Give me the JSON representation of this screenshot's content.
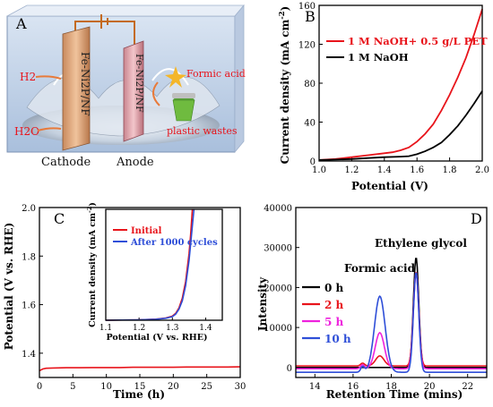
{
  "panel_letters": {
    "a": "A",
    "b": "B",
    "c": "C",
    "d": "D"
  },
  "panel_a": {
    "cathode_material": "Fe-Ni2P/NF",
    "anode_material": "Fe-Ni2P/NF",
    "h2": "H2",
    "h2o": "H2O",
    "formic_acid": "Formic acid",
    "plastic_wastes": "plastic wastes",
    "cathode": "Cathode",
    "anode": "Anode"
  },
  "chart_data": [
    {
      "id": "B",
      "type": "line",
      "xlabel": "Potential (V)",
      "ylabel": "Current density (mA cm-2)",
      "xlim": [
        1.0,
        2.0
      ],
      "ylim": [
        0,
        160
      ],
      "xticks": [
        "1.0",
        "1.2",
        "1.4",
        "1.6",
        "1.8",
        "2.0"
      ],
      "yticks": [
        "0",
        "40",
        "80",
        "120",
        "160"
      ],
      "legend_position": "top-left",
      "grid": false,
      "series": [
        {
          "name": "1 M NaOH+ 0.5 g/L PET",
          "color": "#e8141b",
          "x": [
            1.0,
            1.1,
            1.2,
            1.3,
            1.4,
            1.45,
            1.5,
            1.55,
            1.6,
            1.65,
            1.7,
            1.75,
            1.8,
            1.85,
            1.9,
            1.95,
            2.0
          ],
          "y": [
            1,
            2,
            4,
            6,
            8,
            9,
            11,
            14,
            20,
            28,
            38,
            52,
            68,
            86,
            106,
            130,
            156
          ]
        },
        {
          "name": "1 M NaOH",
          "color": "#000000",
          "x": [
            1.0,
            1.1,
            1.2,
            1.3,
            1.4,
            1.5,
            1.55,
            1.6,
            1.65,
            1.7,
            1.75,
            1.8,
            1.85,
            1.9,
            1.95,
            2.0
          ],
          "y": [
            1,
            1.5,
            2,
            3,
            4,
            4.5,
            5,
            7,
            10,
            14,
            19,
            27,
            36,
            47,
            59,
            72
          ]
        }
      ]
    },
    {
      "id": "C",
      "type": "line",
      "xlabel": "Time (h)",
      "ylabel": "Potential (V vs. RHE)",
      "xlim": [
        0,
        30
      ],
      "ylim": [
        1.3,
        2.0
      ],
      "xticks": [
        "0",
        "5",
        "10",
        "15",
        "20",
        "25",
        "30"
      ],
      "yticks": [
        "1.4",
        "1.6",
        "1.8",
        "2.0"
      ],
      "grid": false,
      "series": [
        {
          "name": "",
          "color": "#e8141b",
          "x": [
            0,
            0.5,
            1,
            2,
            4,
            6,
            8,
            10,
            12,
            14,
            16,
            18,
            20,
            22,
            24,
            26,
            28,
            30
          ],
          "y": [
            1.328,
            1.335,
            1.338,
            1.339,
            1.34,
            1.34,
            1.341,
            1.341,
            1.341,
            1.342,
            1.342,
            1.342,
            1.342,
            1.343,
            1.343,
            1.343,
            1.343,
            1.344
          ]
        }
      ],
      "inset": {
        "type": "line",
        "xlabel": "Potential (V vs. RHE)",
        "ylabel": "Current density (mA cm-2)",
        "xlim": [
          1.1,
          1.45
        ],
        "xticks": [
          "1.1",
          "1.2",
          "1.3",
          "1.4"
        ],
        "legend_position": "top-left",
        "series": [
          {
            "name": "Initial",
            "color": "#e8141b",
            "x": [
              1.1,
              1.2,
              1.25,
              1.28,
              1.3,
              1.31,
              1.32,
              1.33,
              1.34,
              1.35,
              1.355,
              1.36
            ],
            "y": [
              0,
              0.3,
              0.8,
              1.6,
              3,
              5,
              9,
              16,
              28,
              48,
              62,
              80
            ]
          },
          {
            "name": "After 1000 cycles",
            "color": "#2f4fd8",
            "x": [
              1.1,
              1.2,
              1.25,
              1.28,
              1.3,
              1.31,
              1.32,
              1.33,
              1.34,
              1.35,
              1.36,
              1.365
            ],
            "y": [
              0,
              0.3,
              0.7,
              1.4,
              2.6,
              4.4,
              8,
              14,
              25,
              43,
              68,
              80
            ]
          }
        ]
      }
    },
    {
      "id": "D",
      "type": "line",
      "xlabel": "Retention Time (mins)",
      "ylabel": "Intensity",
      "xlim": [
        13,
        23
      ],
      "ylim": [
        -2500,
        40000
      ],
      "xticks": [
        "14",
        "16",
        "18",
        "20",
        "22"
      ],
      "yticks": [
        "0",
        "10000",
        "20000",
        "30000",
        "40000"
      ],
      "annotations": [
        "Ethylene glycol",
        "Formic acid"
      ],
      "legend_position": "left",
      "series": [
        {
          "name": "0 h",
          "color": "#000000",
          "offset": 0,
          "peaks": [
            [
              19.3,
              27500,
              0.14
            ]
          ]
        },
        {
          "name": "2 h",
          "color": "#e8141b",
          "offset": 400,
          "peaks": [
            [
              17.4,
              2500,
              0.22
            ],
            [
              19.3,
              23500,
              0.14
            ],
            [
              16.5,
              700,
              0.1
            ]
          ]
        },
        {
          "name": "5 h",
          "color": "#ee22dd",
          "offset": -300,
          "peaks": [
            [
              17.4,
              9000,
              0.24
            ],
            [
              19.3,
              24000,
              0.14
            ],
            [
              16.5,
              1000,
              0.1
            ]
          ]
        },
        {
          "name": "10 h",
          "color": "#2f4fd8",
          "offset": -1200,
          "peaks": [
            [
              17.4,
              19000,
              0.28
            ],
            [
              19.3,
              25000,
              0.14
            ],
            [
              16.5,
              1400,
              0.1
            ]
          ]
        }
      ]
    }
  ]
}
